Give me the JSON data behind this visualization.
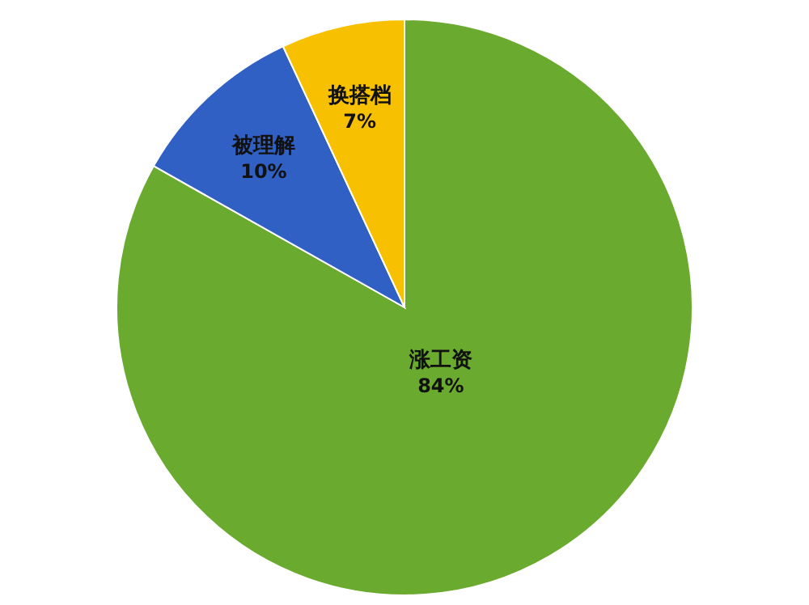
{
  "chart_data": {
    "type": "pie",
    "categories": [
      "涨工资",
      "被理解",
      "换搭档"
    ],
    "values": [
      84,
      10,
      7
    ],
    "colors": [
      "#6aaa2e",
      "#3060c4",
      "#f7c000"
    ],
    "value_labels": [
      "84%",
      "10%",
      "7%"
    ]
  }
}
